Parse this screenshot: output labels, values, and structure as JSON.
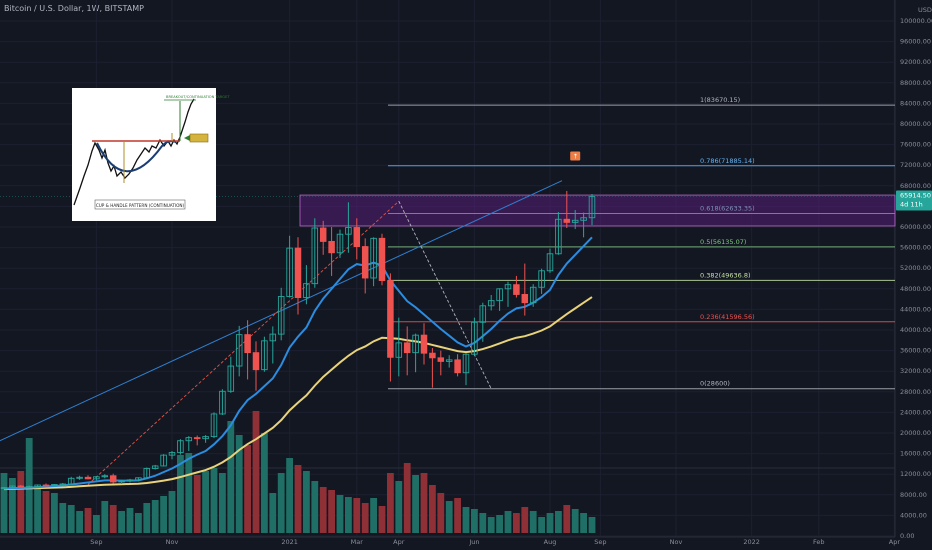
{
  "header": {
    "title": "Bitcoin / U.S. Dollar, 1W, BITSTAMP"
  },
  "currency_label": "USD",
  "price_badge": {
    "price": "65914.50",
    "countdown": "4d 11h"
  },
  "inset": {
    "pattern_label": "CUP & HANDLE PATTERN (CONTINUATION)",
    "breakout_label": "BREAKOUT/CONTINUATION TARGET"
  },
  "fib_levels": [
    {
      "ratio": 1,
      "price": 83670.15,
      "label": "1(83670.15)",
      "color": "#b2b5be"
    },
    {
      "ratio": 0.786,
      "price": 71885.14,
      "label": "0.786(71885.14)",
      "color": "#64b5f6"
    },
    {
      "ratio": 0.618,
      "price": 62633.35,
      "label": "0.618(62633.35)",
      "color": "#80cbc4"
    },
    {
      "ratio": 0.5,
      "price": 56135.07,
      "label": "0.5(56135.07)",
      "color": "#81c784"
    },
    {
      "ratio": 0.382,
      "price": 49636.8,
      "label": "0.382(49636.8)",
      "color": "#c5e1a5"
    },
    {
      "ratio": 0.236,
      "price": 41596.56,
      "label": "0.236(41596.56)",
      "color": "#ef5350"
    },
    {
      "ratio": 0,
      "price": 28600,
      "label": "0(28600)",
      "color": "#b2b5be"
    }
  ],
  "chart_data": {
    "type": "candlestick",
    "y_ticks": [
      "100000.00",
      "96000.00",
      "92000.00",
      "88000.00",
      "84000.00",
      "80000.00",
      "76000.00",
      "72000.00",
      "68000.00",
      "64000.00",
      "60000.00",
      "56000.00",
      "52000.00",
      "48000.00",
      "44000.00",
      "40000.00",
      "36000.00",
      "32000.00",
      "28000.00",
      "24000.00",
      "20000.00",
      "16000.00",
      "12000.00",
      "8000.00",
      "4000.00",
      "0.00"
    ],
    "y_tick_values": [
      100000,
      96000,
      92000,
      88000,
      84000,
      80000,
      76000,
      72000,
      68000,
      64000,
      60000,
      56000,
      52000,
      48000,
      44000,
      40000,
      36000,
      32000,
      28000,
      24000,
      20000,
      16000,
      12000,
      8000,
      4000,
      0
    ],
    "x_ticks": [
      {
        "label": "Sep",
        "index": 11
      },
      {
        "label": "Nov",
        "index": 20
      },
      {
        "label": "2021",
        "index": 34
      },
      {
        "label": "Mar",
        "index": 42
      },
      {
        "label": "Apr",
        "index": 47
      },
      {
        "label": "Jun",
        "index": 56
      },
      {
        "label": "Aug",
        "index": 65
      },
      {
        "label": "Sep",
        "index": 71
      },
      {
        "label": "Nov",
        "index": 80
      },
      {
        "label": "2022",
        "index": 89
      },
      {
        "label": "Feb",
        "index": 97
      },
      {
        "label": "Apr",
        "index": 106
      }
    ],
    "ohlc": [
      [
        9300,
        9500,
        9100,
        9400
      ],
      [
        9400,
        9800,
        9200,
        9700
      ],
      [
        9700,
        9900,
        9400,
        9500
      ],
      [
        9500,
        9800,
        9300,
        9600
      ],
      [
        9600,
        10000,
        9500,
        9900
      ],
      [
        9900,
        10200,
        9700,
        9800
      ],
      [
        9800,
        10100,
        9600,
        10000
      ],
      [
        10000,
        10300,
        9800,
        10100
      ],
      [
        10100,
        11500,
        10000,
        11200
      ],
      [
        11200,
        11700,
        10900,
        11400
      ],
      [
        11400,
        11800,
        11000,
        11100
      ],
      [
        11100,
        11600,
        10800,
        11500
      ],
      [
        11500,
        12000,
        11200,
        11700
      ],
      [
        11700,
        12100,
        10200,
        10500
      ],
      [
        10500,
        10900,
        10100,
        10700
      ],
      [
        10700,
        11100,
        10400,
        10900
      ],
      [
        10900,
        11400,
        10600,
        11300
      ],
      [
        11300,
        13300,
        11200,
        13100
      ],
      [
        13100,
        13800,
        12900,
        13600
      ],
      [
        13600,
        15900,
        13500,
        15700
      ],
      [
        15700,
        16500,
        14900,
        16200
      ],
      [
        16200,
        18800,
        15800,
        18500
      ],
      [
        18500,
        19400,
        16500,
        19100
      ],
      [
        19100,
        19500,
        17600,
        18900
      ],
      [
        18900,
        19600,
        18100,
        19300
      ],
      [
        19300,
        24000,
        19000,
        23700
      ],
      [
        23700,
        28500,
        23500,
        28100
      ],
      [
        28100,
        34800,
        27800,
        33000
      ],
      [
        33000,
        40800,
        31000,
        39100
      ],
      [
        39100,
        41900,
        30400,
        35600
      ],
      [
        35600,
        37800,
        28200,
        32300
      ],
      [
        32300,
        38700,
        31900,
        37900
      ],
      [
        37900,
        40700,
        33500,
        39200
      ],
      [
        39200,
        48200,
        38000,
        46500
      ],
      [
        46500,
        58300,
        46300,
        55900
      ],
      [
        55900,
        58000,
        43000,
        46300
      ],
      [
        46300,
        52600,
        45000,
        49000
      ],
      [
        49000,
        61700,
        48200,
        59800
      ],
      [
        59800,
        61200,
        54600,
        57200
      ],
      [
        57200,
        60000,
        50500,
        55000
      ],
      [
        55000,
        59500,
        54000,
        58600
      ],
      [
        58600,
        64800,
        55000,
        59900
      ],
      [
        59900,
        61700,
        53700,
        56200
      ],
      [
        56200,
        57800,
        47100,
        50100
      ],
      [
        50100,
        58000,
        48500,
        57800
      ],
      [
        57800,
        58700,
        48700,
        49600
      ],
      [
        49600,
        51000,
        30000,
        34700
      ],
      [
        34700,
        42400,
        31000,
        37500
      ],
      [
        37500,
        40700,
        31200,
        35600
      ],
      [
        35600,
        39300,
        31800,
        39000
      ],
      [
        39000,
        41300,
        33300,
        35500
      ],
      [
        35500,
        36500,
        28800,
        34600
      ],
      [
        34600,
        36000,
        31200,
        33900
      ],
      [
        33900,
        35100,
        32700,
        34200
      ],
      [
        34200,
        35300,
        31000,
        31700
      ],
      [
        31700,
        35500,
        29300,
        35300
      ],
      [
        35300,
        42400,
        35200,
        41500
      ],
      [
        41500,
        45300,
        37700,
        44700
      ],
      [
        44700,
        46800,
        43800,
        45700
      ],
      [
        45700,
        48100,
        43700,
        48000
      ],
      [
        48000,
        49400,
        44500,
        48800
      ],
      [
        48800,
        50500,
        46300,
        46900
      ],
      [
        46900,
        52900,
        42800,
        45300
      ],
      [
        45300,
        48900,
        44500,
        48300
      ],
      [
        48300,
        51900,
        47000,
        51500
      ],
      [
        51500,
        55800,
        51100,
        54800
      ],
      [
        54800,
        62900,
        54600,
        61500
      ],
      [
        61500,
        67000,
        59800,
        60900
      ],
      [
        60900,
        63300,
        59600,
        61300
      ],
      [
        61300,
        62800,
        58000,
        61800
      ],
      [
        61800,
        66400,
        60400,
        65900
      ]
    ],
    "ema_fast": [
      9200,
      9300,
      9350,
      9400,
      9500,
      9600,
      9700,
      9800,
      10000,
      10200,
      10400,
      10600,
      10800,
      10800,
      10750,
      10750,
      10800,
      11200,
      11700,
      12400,
      13100,
      14000,
      15000,
      15800,
      16500,
      17800,
      19400,
      21500,
      24300,
      26400,
      27600,
      29100,
      30600,
      33200,
      36600,
      38700,
      40500,
      43700,
      46100,
      48000,
      49900,
      51800,
      52800,
      52500,
      53100,
      52500,
      49600,
      47600,
      45600,
      44400,
      43000,
      41600,
      40200,
      38900,
      37600,
      36800,
      37500,
      38800,
      40200,
      41800,
      43200,
      44200,
      44500,
      45300,
      46400,
      47800,
      50700,
      52900,
      54600,
      56300,
      58000
    ],
    "ema_slow": [
      9100,
      9150,
      9200,
      9250,
      9300,
      9350,
      9400,
      9450,
      9550,
      9650,
      9750,
      9850,
      9950,
      10000,
      10050,
      10100,
      10150,
      10300,
      10500,
      10750,
      11050,
      11450,
      11900,
      12350,
      12800,
      13450,
      14300,
      15350,
      16700,
      17850,
      18800,
      19900,
      21000,
      22500,
      24400,
      25900,
      27300,
      29200,
      30900,
      32300,
      33700,
      35000,
      36100,
      36800,
      37800,
      38500,
      38400,
      38300,
      38000,
      37800,
      37500,
      37100,
      36700,
      36300,
      35900,
      35700,
      35900,
      36300,
      36800,
      37400,
      38000,
      38500,
      38800,
      39300,
      39900,
      40700,
      41900,
      43100,
      44200,
      45300,
      46400
    ],
    "volume": [
      60,
      55,
      62,
      95,
      45,
      42,
      40,
      30,
      28,
      22,
      25,
      18,
      32,
      28,
      22,
      25,
      20,
      30,
      33,
      37,
      42,
      78,
      80,
      58,
      62,
      65,
      60,
      112,
      98,
      88,
      122,
      100,
      40,
      60,
      75,
      68,
      62,
      52,
      46,
      43,
      38,
      36,
      35,
      30,
      35,
      27,
      60,
      52,
      70,
      58,
      60,
      48,
      40,
      32,
      35,
      26,
      24,
      20,
      16,
      18,
      22,
      20,
      26,
      22,
      16,
      20,
      22,
      28,
      24,
      20,
      16
    ]
  }
}
